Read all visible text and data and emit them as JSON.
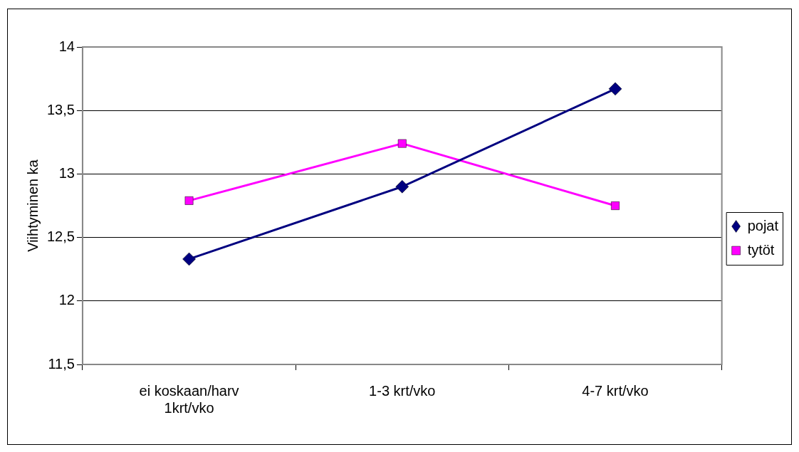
{
  "chart_data": {
    "type": "line",
    "ylabel": "Viihtyminen ka",
    "categories": [
      "ei koskaan/harv 1krt/vko",
      "1-3 krt/vko",
      "4-7 krt/vko"
    ],
    "series": [
      {
        "name": "pojat",
        "color": "#000080",
        "marker": "diamond",
        "values": [
          12.33,
          12.9,
          13.67
        ]
      },
      {
        "name": "tytöt",
        "color": "#ff00ff",
        "marker": "square",
        "values": [
          12.79,
          13.24,
          12.75
        ]
      }
    ],
    "ylim": [
      11.5,
      14
    ],
    "yticks": [
      {
        "value": 11.5,
        "label": "11,5"
      },
      12,
      {
        "value": 12.5,
        "label": "12,5"
      },
      13,
      {
        "value": 13.5,
        "label": "13,5"
      },
      14
    ],
    "grid": "y",
    "legend": "right",
    "line_style": "solid"
  }
}
